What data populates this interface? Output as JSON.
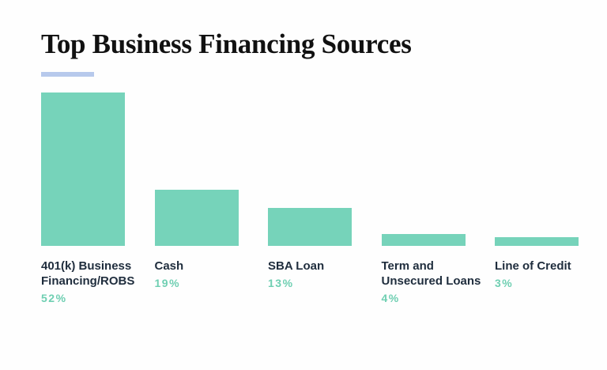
{
  "chart_data": {
    "type": "bar",
    "title": "Top Business Financing Sources",
    "categories": [
      "401(k) Business Financing/ROBS",
      "Cash",
      "SBA Loan",
      "Term and Unsecured Loans",
      "Line of Credit"
    ],
    "values": [
      52,
      19,
      13,
      4,
      3
    ],
    "value_labels": [
      "52%",
      "19%",
      "13%",
      "4%",
      "3%"
    ],
    "color": "#76d3ba",
    "label_color": "#6fcfb2"
  }
}
